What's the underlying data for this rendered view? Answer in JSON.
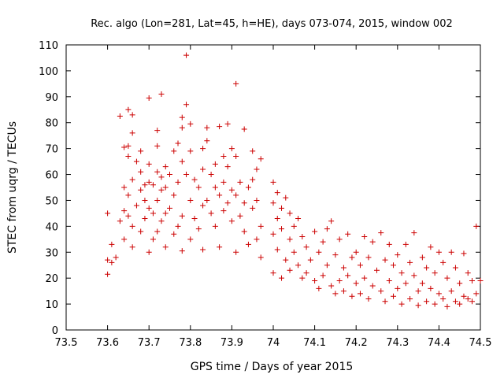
{
  "chart_data": {
    "type": "scatter",
    "title": "Rec. algo (Lon=281, Lat=45, h=HE), days 073-074, 2015, window 002",
    "xlabel": "GPS time / Days of year 2015",
    "ylabel": "STEC from uqrg / TECUs",
    "xlim": [
      73.5,
      74.5
    ],
    "ylim": [
      0,
      110
    ],
    "xticks": [
      73.5,
      73.6,
      73.7,
      73.8,
      73.9,
      74,
      74.1,
      74.2,
      74.3,
      74.4,
      74.5
    ],
    "xtick_labels": [
      "73.5",
      "73.6",
      "73.7",
      "73.8",
      "73.9",
      "74",
      "74.1",
      "74.2",
      "74.3",
      "74.4",
      "74.5"
    ],
    "yticks": [
      0,
      10,
      20,
      30,
      40,
      50,
      60,
      70,
      80,
      90,
      100,
      110
    ],
    "ytick_labels": [
      "0",
      "10",
      "20",
      "30",
      "40",
      "50",
      "60",
      "70",
      "80",
      "90",
      "100",
      "110"
    ],
    "grid": false,
    "marker": "+",
    "color": "#cc0000",
    "series": [
      {
        "points": [
          [
            73.6,
            45
          ],
          [
            73.6,
            27
          ],
          [
            73.6,
            21.5
          ],
          [
            73.61,
            33
          ],
          [
            73.61,
            26
          ],
          [
            73.62,
            28
          ],
          [
            73.63,
            82.5
          ],
          [
            73.63,
            42
          ],
          [
            73.64,
            70.5
          ],
          [
            73.64,
            55
          ],
          [
            73.64,
            46
          ],
          [
            73.64,
            35
          ],
          [
            73.65,
            85
          ],
          [
            73.65,
            71
          ],
          [
            73.65,
            67
          ],
          [
            73.65,
            52
          ],
          [
            73.65,
            44
          ],
          [
            73.66,
            83
          ],
          [
            73.66,
            76
          ],
          [
            73.66,
            58
          ],
          [
            73.66,
            40
          ],
          [
            73.66,
            32
          ],
          [
            73.67,
            65
          ],
          [
            73.67,
            48
          ],
          [
            73.68,
            69
          ],
          [
            73.68,
            61
          ],
          [
            73.68,
            54
          ],
          [
            73.68,
            38
          ],
          [
            73.69,
            56
          ],
          [
            73.69,
            50
          ],
          [
            73.69,
            43
          ],
          [
            73.7,
            89.5
          ],
          [
            73.7,
            64
          ],
          [
            73.7,
            57
          ],
          [
            73.7,
            47
          ],
          [
            73.7,
            30
          ],
          [
            73.71,
            56
          ],
          [
            73.71,
            45
          ],
          [
            73.71,
            35
          ],
          [
            73.72,
            77
          ],
          [
            73.72,
            71
          ],
          [
            73.72,
            61
          ],
          [
            73.72,
            50
          ],
          [
            73.72,
            38
          ],
          [
            73.73,
            91
          ],
          [
            73.73,
            59
          ],
          [
            73.73,
            54
          ],
          [
            73.73,
            42
          ],
          [
            73.74,
            63
          ],
          [
            73.74,
            55
          ],
          [
            73.74,
            45
          ],
          [
            73.74,
            32
          ],
          [
            73.75,
            60
          ],
          [
            73.75,
            47
          ],
          [
            73.76,
            69
          ],
          [
            73.76,
            52
          ],
          [
            73.76,
            37
          ],
          [
            73.77,
            72
          ],
          [
            73.77,
            57
          ],
          [
            73.77,
            40
          ],
          [
            73.78,
            82
          ],
          [
            73.78,
            78
          ],
          [
            73.78,
            65
          ],
          [
            73.78,
            44
          ],
          [
            73.78,
            30.5
          ],
          [
            73.79,
            106
          ],
          [
            73.79,
            87
          ],
          [
            73.79,
            60
          ],
          [
            73.8,
            79.5
          ],
          [
            73.8,
            69
          ],
          [
            73.8,
            50
          ],
          [
            73.8,
            35
          ],
          [
            73.81,
            58
          ],
          [
            73.81,
            43
          ],
          [
            73.82,
            55
          ],
          [
            73.82,
            39
          ],
          [
            73.83,
            70
          ],
          [
            73.83,
            62
          ],
          [
            73.83,
            48
          ],
          [
            73.83,
            31
          ],
          [
            73.84,
            78
          ],
          [
            73.84,
            73
          ],
          [
            73.84,
            50
          ],
          [
            73.85,
            60
          ],
          [
            73.85,
            45
          ],
          [
            73.86,
            64
          ],
          [
            73.86,
            55
          ],
          [
            73.86,
            40
          ],
          [
            73.87,
            78.5
          ],
          [
            73.87,
            52
          ],
          [
            73.87,
            32
          ],
          [
            73.88,
            67
          ],
          [
            73.88,
            57
          ],
          [
            73.88,
            46
          ],
          [
            73.89,
            79.5
          ],
          [
            73.89,
            63
          ],
          [
            73.89,
            49
          ],
          [
            73.9,
            70
          ],
          [
            73.9,
            54
          ],
          [
            73.9,
            42
          ],
          [
            73.91,
            95
          ],
          [
            73.91,
            67
          ],
          [
            73.91,
            52
          ],
          [
            73.91,
            30
          ],
          [
            73.92,
            57
          ],
          [
            73.92,
            44
          ],
          [
            73.93,
            77.5
          ],
          [
            73.93,
            49
          ],
          [
            73.93,
            38
          ],
          [
            73.94,
            55
          ],
          [
            73.94,
            33
          ],
          [
            73.95,
            69
          ],
          [
            73.95,
            58
          ],
          [
            73.95,
            47
          ],
          [
            73.96,
            62
          ],
          [
            73.96,
            50
          ],
          [
            73.96,
            35
          ],
          [
            73.97,
            66
          ],
          [
            73.97,
            40
          ],
          [
            73.97,
            28
          ],
          [
            74.0,
            57
          ],
          [
            74.0,
            49
          ],
          [
            74.0,
            37
          ],
          [
            74.0,
            22
          ],
          [
            74.01,
            53
          ],
          [
            74.01,
            43
          ],
          [
            74.01,
            31
          ],
          [
            74.02,
            47
          ],
          [
            74.02,
            39
          ],
          [
            74.02,
            20
          ],
          [
            74.03,
            51
          ],
          [
            74.03,
            27
          ],
          [
            74.04,
            45
          ],
          [
            74.04,
            35
          ],
          [
            74.04,
            23
          ],
          [
            74.05,
            40
          ],
          [
            74.05,
            30
          ],
          [
            74.06,
            43
          ],
          [
            74.06,
            25
          ],
          [
            74.07,
            36
          ],
          [
            74.07,
            20
          ],
          [
            74.08,
            32
          ],
          [
            74.08,
            22
          ],
          [
            74.09,
            27
          ],
          [
            74.1,
            38
          ],
          [
            74.1,
            19
          ],
          [
            74.11,
            30
          ],
          [
            74.11,
            16
          ],
          [
            74.12,
            34
          ],
          [
            74.12,
            21
          ],
          [
            74.13,
            39
          ],
          [
            74.13,
            25
          ],
          [
            74.14,
            42
          ],
          [
            74.14,
            17
          ],
          [
            74.15,
            29
          ],
          [
            74.15,
            14
          ],
          [
            74.16,
            35
          ],
          [
            74.16,
            19
          ],
          [
            74.17,
            24
          ],
          [
            74.17,
            15
          ],
          [
            74.18,
            37
          ],
          [
            74.18,
            21
          ],
          [
            74.19,
            28
          ],
          [
            74.19,
            13
          ],
          [
            74.2,
            30
          ],
          [
            74.2,
            18
          ],
          [
            74.21,
            25
          ],
          [
            74.21,
            14
          ],
          [
            74.22,
            36
          ],
          [
            74.22,
            20
          ],
          [
            74.23,
            28
          ],
          [
            74.23,
            12
          ],
          [
            74.24,
            34
          ],
          [
            74.24,
            17
          ],
          [
            74.25,
            23
          ],
          [
            74.26,
            37.5
          ],
          [
            74.26,
            15
          ],
          [
            74.27,
            27
          ],
          [
            74.27,
            11
          ],
          [
            74.28,
            33
          ],
          [
            74.28,
            19
          ],
          [
            74.29,
            25
          ],
          [
            74.29,
            13
          ],
          [
            74.3,
            29
          ],
          [
            74.3,
            16
          ],
          [
            74.31,
            22
          ],
          [
            74.31,
            10
          ],
          [
            74.32,
            33
          ],
          [
            74.32,
            18
          ],
          [
            74.33,
            26
          ],
          [
            74.33,
            12
          ],
          [
            74.34,
            37.5
          ],
          [
            74.34,
            21
          ],
          [
            74.35,
            15
          ],
          [
            74.35,
            9.5
          ],
          [
            74.36,
            28
          ],
          [
            74.36,
            18
          ],
          [
            74.37,
            24
          ],
          [
            74.37,
            11
          ],
          [
            74.38,
            32
          ],
          [
            74.38,
            16
          ],
          [
            74.39,
            22
          ],
          [
            74.39,
            10
          ],
          [
            74.4,
            30
          ],
          [
            74.4,
            14
          ],
          [
            74.41,
            26
          ],
          [
            74.41,
            12
          ],
          [
            74.42,
            20
          ],
          [
            74.42,
            9
          ],
          [
            74.43,
            30
          ],
          [
            74.43,
            15
          ],
          [
            74.44,
            24
          ],
          [
            74.44,
            11
          ],
          [
            74.45,
            18
          ],
          [
            74.45,
            10
          ],
          [
            74.46,
            29.5
          ],
          [
            74.46,
            13
          ],
          [
            74.47,
            22
          ],
          [
            74.47,
            12
          ],
          [
            74.48,
            19
          ],
          [
            74.48,
            11
          ],
          [
            74.49,
            40
          ],
          [
            74.49,
            14
          ],
          [
            74.5,
            19
          ]
        ]
      }
    ]
  }
}
